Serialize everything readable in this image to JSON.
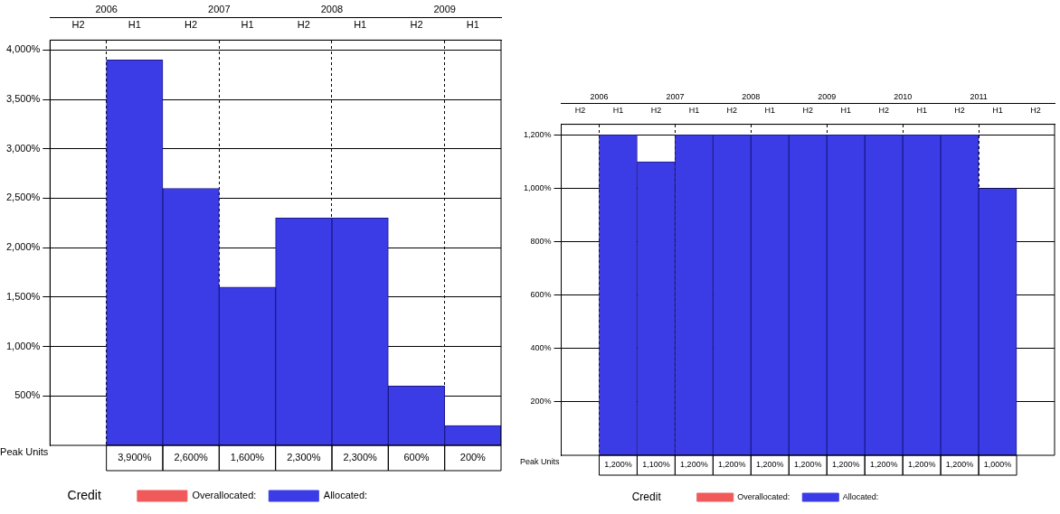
{
  "chart_data": [
    {
      "type": "bar",
      "categories": [
        "H2",
        "H1",
        "H2",
        "H1",
        "H2",
        "H1",
        "H2",
        "H1"
      ],
      "series": [
        {
          "name": "Overallocated:",
          "color": "#f05a5a",
          "values": [
            null,
            null,
            null,
            null,
            null,
            null,
            null,
            null
          ]
        },
        {
          "name": "Allocated:",
          "color": "#3c3ce6",
          "values": [
            null,
            3900,
            2600,
            1600,
            2300,
            2300,
            600,
            200
          ],
          "value_labels": [
            null,
            "3,900%",
            "2,600%",
            "1,600%",
            "2,300%",
            "2,300%",
            "600%",
            "200%"
          ]
        }
      ],
      "ylim": [
        0,
        4100
      ],
      "yticks": [
        {
          "value": 500,
          "label": "500%"
        },
        {
          "value": 1000,
          "label": "1,000%"
        },
        {
          "value": 1500,
          "label": "1,500%"
        },
        {
          "value": 2000,
          "label": "2,000%"
        },
        {
          "value": 2500,
          "label": "2,500%"
        },
        {
          "value": 3000,
          "label": "3,000%"
        },
        {
          "value": 3500,
          "label": "3,500%"
        },
        {
          "value": 4000,
          "label": "4,000%"
        }
      ],
      "x2lim": [
        2005.5,
        2009.5
      ],
      "x2ticks": [
        2006,
        2007,
        2008,
        2009
      ],
      "annotations": [
        "Peak Units",
        "Credit"
      ],
      "grid": true,
      "legend": "bottom"
    },
    {
      "type": "bar",
      "categories": [
        "H2",
        "H1",
        "H2",
        "H1",
        "H2",
        "H1",
        "H2",
        "H1",
        "H2",
        "H1",
        "H2",
        "H1",
        "H2"
      ],
      "series": [
        {
          "name": "Overallocated:",
          "color": "#f05a5a",
          "values": [
            null,
            null,
            null,
            null,
            null,
            null,
            null,
            null,
            null,
            null,
            null,
            null,
            null
          ]
        },
        {
          "name": "Allocated:",
          "color": "#3c3ce6",
          "values": [
            null,
            1200,
            1100,
            1200,
            1200,
            1200,
            1200,
            1200,
            1200,
            1200,
            1200,
            1000,
            null
          ],
          "value_labels": [
            null,
            "1,200%",
            "1,100%",
            "1,200%",
            "1,200%",
            "1,200%",
            "1,200%",
            "1,200%",
            "1,200%",
            "1,200%",
            "1,200%",
            "1,000%",
            null
          ]
        }
      ],
      "ylim": [
        0,
        1240
      ],
      "yticks": [
        {
          "value": 200,
          "label": "200%"
        },
        {
          "value": 400,
          "label": "400%"
        },
        {
          "value": 600,
          "label": "600%"
        },
        {
          "value": 800,
          "label": "800%"
        },
        {
          "value": 1000,
          "label": "1,000%"
        },
        {
          "value": 1200,
          "label": "1,200%"
        }
      ],
      "x2lim": [
        2005.5,
        2012
      ],
      "x2ticks": [
        2006,
        2007,
        2008,
        2009,
        2010,
        2011
      ],
      "annotations": [
        "Peak Units",
        "Credit"
      ],
      "grid": true,
      "legend": "bottom"
    }
  ]
}
